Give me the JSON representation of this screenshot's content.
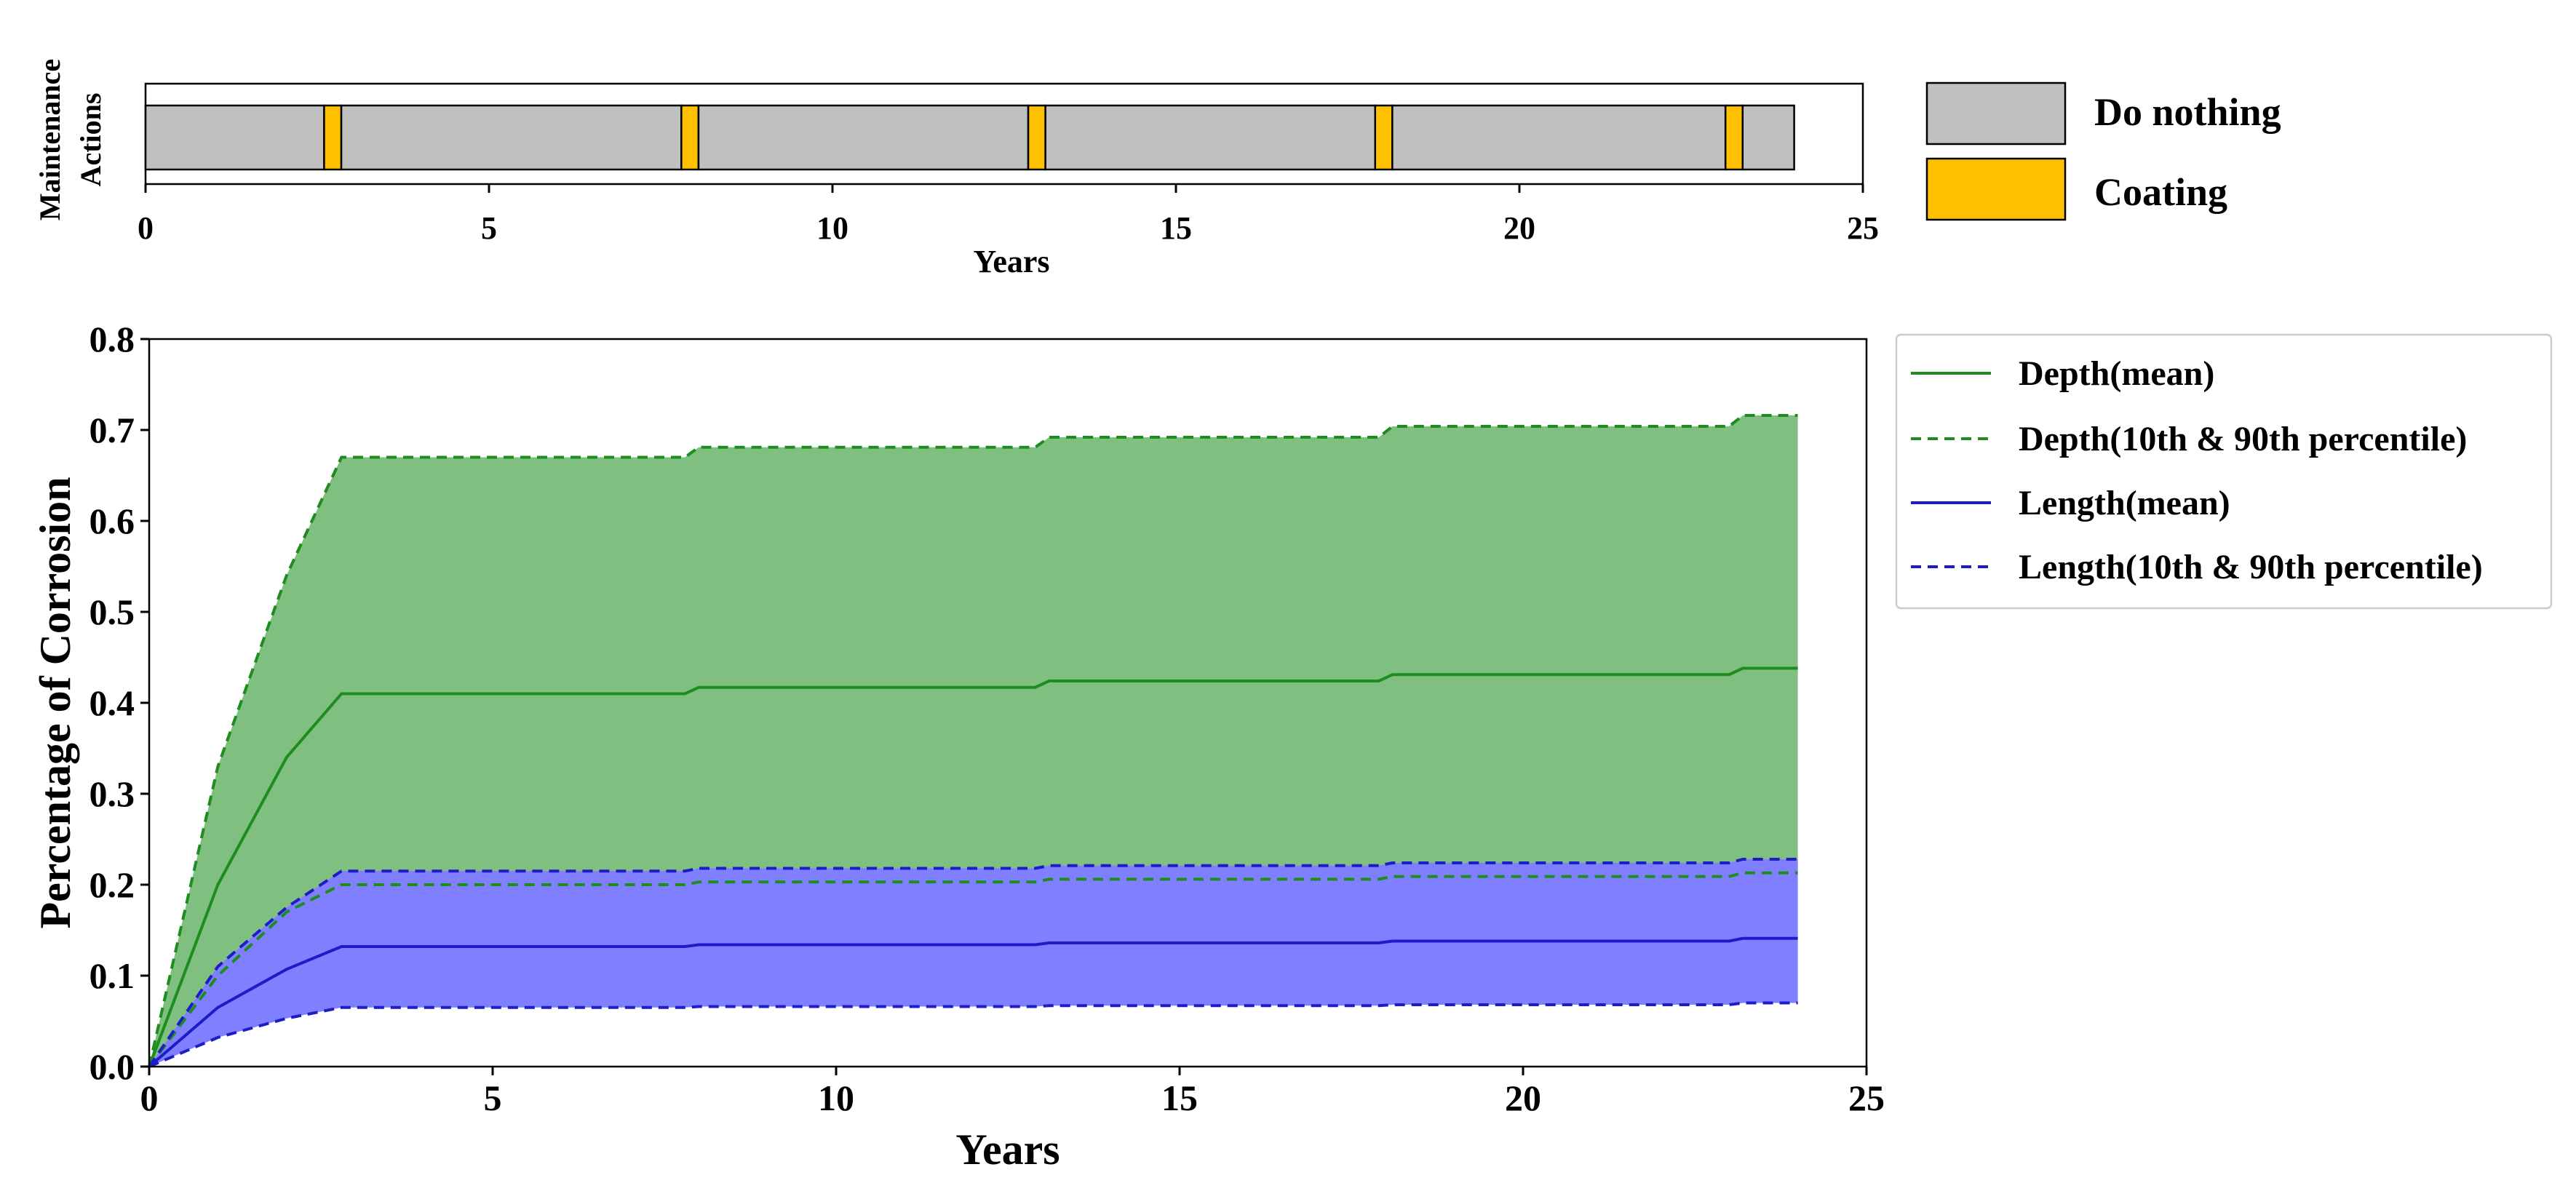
{
  "colors": {
    "do_nothing": "#c0c0c0",
    "coating": "#ffc000",
    "depth_band": "#7fbf7f",
    "depth_line": "#1e8c1e",
    "length_band": "#7f7fff",
    "length_line": "#1c1cc8"
  },
  "chart_data": [
    {
      "type": "timeline",
      "ylabel": [
        "Maintenance",
        "Actions"
      ],
      "xlabel": "Years",
      "xlim": [
        0,
        25
      ],
      "xticks": [
        "0",
        "5",
        "10",
        "15",
        "20",
        "25"
      ],
      "segments": [
        {
          "action": "Do nothing",
          "start": 0.0,
          "end": 2.6
        },
        {
          "action": "Coating",
          "start": 2.6,
          "end": 2.85
        },
        {
          "action": "Do nothing",
          "start": 2.85,
          "end": 7.8
        },
        {
          "action": "Coating",
          "start": 7.8,
          "end": 8.05
        },
        {
          "action": "Do nothing",
          "start": 8.05,
          "end": 12.85
        },
        {
          "action": "Coating",
          "start": 12.85,
          "end": 13.1
        },
        {
          "action": "Do nothing",
          "start": 13.1,
          "end": 17.9
        },
        {
          "action": "Coating",
          "start": 17.9,
          "end": 18.15
        },
        {
          "action": "Do nothing",
          "start": 18.15,
          "end": 23.0
        },
        {
          "action": "Coating",
          "start": 23.0,
          "end": 23.25
        },
        {
          "action": "Do nothing",
          "start": 23.25,
          "end": 24.0
        }
      ],
      "legend": [
        {
          "label": "Do nothing",
          "color": "#c0c0c0"
        },
        {
          "label": "Coating",
          "color": "#ffc000"
        }
      ]
    },
    {
      "type": "line",
      "xlabel": "Years",
      "ylabel": "Percentage of Corrosion",
      "xlim": [
        0,
        25
      ],
      "ylim": [
        0,
        0.8
      ],
      "xticks": [
        "0",
        "5",
        "10",
        "15",
        "20",
        "25"
      ],
      "yticks": [
        "0.0",
        "0.1",
        "0.2",
        "0.3",
        "0.4",
        "0.5",
        "0.6",
        "0.7",
        "0.8"
      ],
      "grid": false,
      "legend_position": "outside-right",
      "series": [
        {
          "name": "Depth(mean)",
          "style": "solid",
          "color": "#1e8c1e",
          "x": [
            0,
            1.0,
            2.0,
            2.8,
            7.8,
            8.0,
            12.9,
            13.1,
            17.9,
            18.1,
            23.0,
            23.2,
            24.0
          ],
          "y": [
            0,
            0.2,
            0.34,
            0.41,
            0.41,
            0.417,
            0.417,
            0.424,
            0.424,
            0.431,
            0.431,
            0.438,
            0.438
          ]
        },
        {
          "name": "Depth(10th & 90th percentile)",
          "style": "dashed",
          "color": "#1e8c1e",
          "x": [
            0,
            1.0,
            2.0,
            2.8,
            7.8,
            8.0,
            12.9,
            13.1,
            17.9,
            18.1,
            23.0,
            23.2,
            24.0
          ],
          "upper": [
            0,
            0.33,
            0.54,
            0.67,
            0.67,
            0.681,
            0.681,
            0.692,
            0.692,
            0.704,
            0.704,
            0.716,
            0.716
          ],
          "lower": [
            0,
            0.1,
            0.17,
            0.2,
            0.2,
            0.203,
            0.203,
            0.206,
            0.206,
            0.209,
            0.209,
            0.213,
            0.213
          ]
        },
        {
          "name": "Length(mean)",
          "style": "solid",
          "color": "#1c1cc8",
          "x": [
            0,
            1.0,
            2.0,
            2.8,
            7.8,
            8.0,
            12.9,
            13.1,
            17.9,
            18.1,
            23.0,
            23.2,
            24.0
          ],
          "y": [
            0,
            0.065,
            0.107,
            0.132,
            0.132,
            0.134,
            0.134,
            0.136,
            0.136,
            0.138,
            0.138,
            0.141,
            0.141
          ]
        },
        {
          "name": "Length(10th & 90th percentile)",
          "style": "dashed",
          "color": "#1c1cc8",
          "x": [
            0,
            1.0,
            2.0,
            2.8,
            7.8,
            8.0,
            12.9,
            13.1,
            17.9,
            18.1,
            23.0,
            23.2,
            24.0
          ],
          "upper": [
            0,
            0.11,
            0.175,
            0.215,
            0.215,
            0.218,
            0.218,
            0.221,
            0.221,
            0.224,
            0.224,
            0.228,
            0.228
          ],
          "lower": [
            0,
            0.032,
            0.053,
            0.065,
            0.065,
            0.066,
            0.066,
            0.067,
            0.067,
            0.068,
            0.068,
            0.07,
            0.07
          ]
        }
      ]
    }
  ]
}
